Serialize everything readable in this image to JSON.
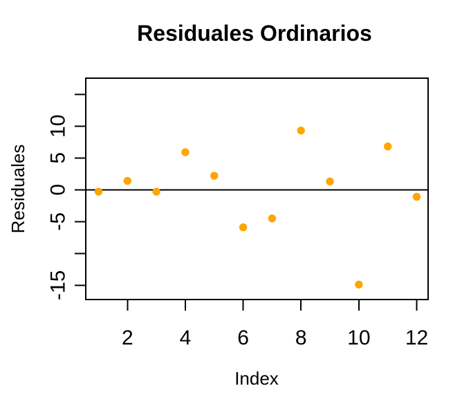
{
  "chart_data": {
    "type": "scatter",
    "title": "Residuales Ordinarios",
    "xlabel": "Index",
    "ylabel": "Residuales",
    "x": [
      1,
      2,
      3,
      4,
      5,
      6,
      7,
      8,
      9,
      10,
      11,
      12
    ],
    "y": [
      -0.3,
      1.4,
      -0.3,
      5.9,
      2.2,
      -5.9,
      -4.5,
      9.3,
      1.3,
      -14.9,
      6.8,
      -1.1
    ],
    "point_color": "#FFA500",
    "point_shape": "filled-circle",
    "x_ticks": [
      2,
      4,
      6,
      8,
      10,
      12
    ],
    "y_ticks": [
      {
        "value": 15,
        "label": ""
      },
      {
        "value": 10,
        "label": "10"
      },
      {
        "value": 5,
        "label": "5"
      },
      {
        "value": 0,
        "label": "0"
      },
      {
        "value": -5,
        "label": "-5"
      },
      {
        "value": -10,
        "label": ""
      },
      {
        "value": -15,
        "label": "-15"
      }
    ],
    "xlim": [
      0.56,
      12.44
    ],
    "ylim": [
      -17.3,
      17.5
    ],
    "zero_line": true,
    "grid": false,
    "legend": null,
    "axis_color": "#000000",
    "background_color": "#FFFFFF"
  }
}
